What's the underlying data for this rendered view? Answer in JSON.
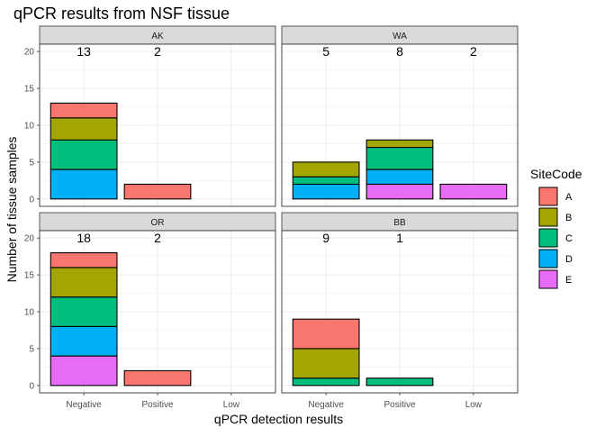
{
  "chart_data": {
    "type": "bar",
    "title": "qPCR results from NSF tissue",
    "xlabel": "qPCR detection results",
    "ylabel": "Number of tissue samples",
    "categories": [
      "Negative",
      "Positive",
      "Low"
    ],
    "ylim": [
      0,
      20
    ],
    "yticks": [
      0,
      5,
      10,
      15,
      20
    ],
    "grid": true,
    "stacked": true,
    "legend": {
      "title": "SiteCode",
      "position": "right",
      "entries": [
        {
          "label": "A",
          "color": "#F8766D"
        },
        {
          "label": "B",
          "color": "#A3A500"
        },
        {
          "label": "C",
          "color": "#00BF7D"
        },
        {
          "label": "D",
          "color": "#00B0F6"
        },
        {
          "label": "E",
          "color": "#E76BF3"
        }
      ]
    },
    "panels": [
      {
        "label": "AK",
        "totals": [
          "13",
          "2",
          ""
        ],
        "stacks": [
          {
            "A": 2,
            "B": 3,
            "C": 4,
            "D": 4,
            "E": 0
          },
          {
            "A": 2,
            "B": 0,
            "C": 0,
            "D": 0,
            "E": 0
          },
          {
            "A": 0,
            "B": 0,
            "C": 0,
            "D": 0,
            "E": 0
          }
        ]
      },
      {
        "label": "WA",
        "totals": [
          "5",
          "8",
          "2"
        ],
        "stacks": [
          {
            "A": 0,
            "B": 2,
            "C": 1,
            "D": 2,
            "E": 0
          },
          {
            "A": 0,
            "B": 1,
            "C": 3,
            "D": 2,
            "E": 2
          },
          {
            "A": 0,
            "B": 0,
            "C": 0,
            "D": 0,
            "E": 2
          }
        ]
      },
      {
        "label": "OR",
        "totals": [
          "18",
          "2",
          ""
        ],
        "stacks": [
          {
            "A": 2,
            "B": 4,
            "C": 4,
            "D": 4,
            "E": 4
          },
          {
            "A": 2,
            "B": 0,
            "C": 0,
            "D": 0,
            "E": 0
          },
          {
            "A": 0,
            "B": 0,
            "C": 0,
            "D": 0,
            "E": 0
          }
        ]
      },
      {
        "label": "BB",
        "totals": [
          "9",
          "1",
          ""
        ],
        "stacks": [
          {
            "A": 4,
            "B": 4,
            "C": 1,
            "D": 0,
            "E": 0
          },
          {
            "A": 0,
            "B": 0,
            "C": 1,
            "D": 0,
            "E": 0
          },
          {
            "A": 0,
            "B": 0,
            "C": 0,
            "D": 0,
            "E": 0
          }
        ]
      }
    ]
  }
}
